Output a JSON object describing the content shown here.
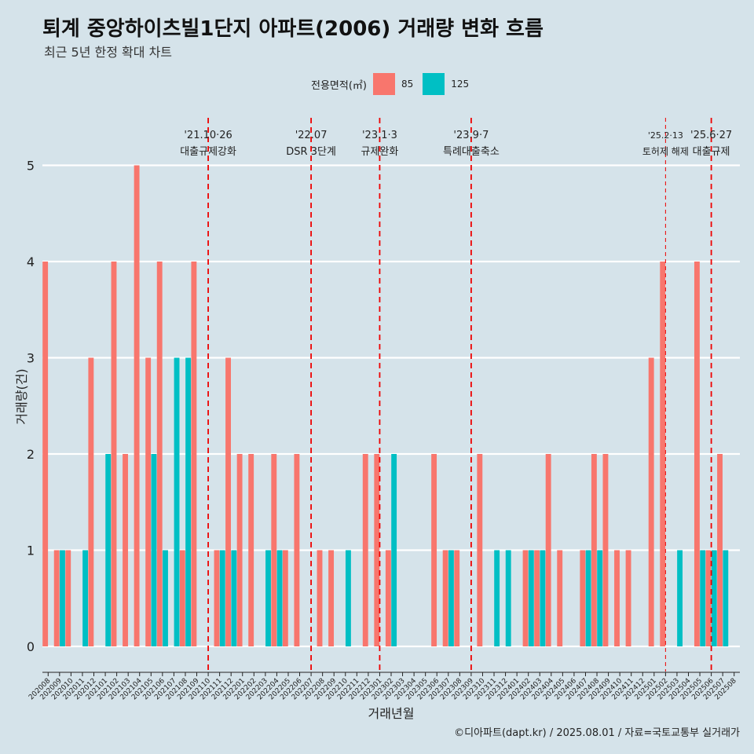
{
  "header": {
    "title": "퇴계 중앙하이츠빌1단지 아파트(2006) 거래량 변화 흐름",
    "subtitle": "최근 5년 한정 확대 차트"
  },
  "legend": {
    "title": "전용면적(㎡)",
    "items": [
      {
        "label": "85",
        "color": "#f8766d"
      },
      {
        "label": "125",
        "color": "#00bfc4"
      }
    ]
  },
  "caption": "©디아파트(dapt.kr) / 2025.08.01 / 자료=국토교통부 실거래가",
  "chart_data": {
    "type": "bar",
    "xlabel": "거래년월",
    "ylabel": "거래량(건)",
    "ylim": [
      0,
      5
    ],
    "yticks": [
      0,
      1,
      2,
      3,
      4,
      5
    ],
    "grid": true,
    "legend_position": "top",
    "categories": [
      "202008",
      "202009",
      "202010",
      "202011",
      "202012",
      "202101",
      "202102",
      "202103",
      "202104",
      "202105",
      "202106",
      "202107",
      "202108",
      "202109",
      "202110",
      "202111",
      "202112",
      "202201",
      "202202",
      "202203",
      "202204",
      "202205",
      "202206",
      "202207",
      "202208",
      "202209",
      "202210",
      "202211",
      "202212",
      "202301",
      "202302",
      "202303",
      "202304",
      "202305",
      "202306",
      "202307",
      "202308",
      "202309",
      "202310",
      "202311",
      "202312",
      "202401",
      "202402",
      "202403",
      "202404",
      "202405",
      "202406",
      "202407",
      "202408",
      "202409",
      "202410",
      "202411",
      "202412",
      "202501",
      "202502",
      "202503",
      "202504",
      "202505",
      "202506",
      "202507",
      "202508"
    ],
    "series": [
      {
        "name": "85",
        "color": "#f8766d",
        "values": [
          4,
          1,
          1,
          0,
          3,
          0,
          4,
          2,
          5,
          3,
          4,
          0,
          1,
          4,
          0,
          1,
          3,
          2,
          2,
          0,
          2,
          1,
          2,
          0,
          1,
          1,
          0,
          0,
          2,
          2,
          1,
          0,
          0,
          0,
          2,
          1,
          1,
          0,
          2,
          0,
          0,
          0,
          1,
          1,
          2,
          1,
          0,
          1,
          2,
          2,
          1,
          1,
          0,
          3,
          4,
          0,
          0,
          4,
          1,
          2,
          0
        ]
      },
      {
        "name": "125",
        "color": "#00bfc4",
        "values": [
          0,
          1,
          0,
          1,
          0,
          2,
          0,
          0,
          0,
          2,
          1,
          3,
          3,
          0,
          0,
          1,
          1,
          0,
          0,
          1,
          1,
          0,
          0,
          0,
          0,
          0,
          1,
          0,
          0,
          0,
          2,
          0,
          0,
          0,
          0,
          1,
          0,
          0,
          0,
          1,
          1,
          0,
          1,
          1,
          0,
          0,
          0,
          1,
          1,
          0,
          0,
          0,
          0,
          0,
          0,
          1,
          0,
          1,
          1,
          1,
          0
        ]
      }
    ],
    "events": [
      {
        "category": "202110",
        "date": "'21.10·26",
        "label": "대출규제강화",
        "style": "dashed"
      },
      {
        "category": "202207",
        "date": "'22.07",
        "label": "DSR 3단계",
        "style": "dashed"
      },
      {
        "category": "202301",
        "date": "'23.1·3",
        "label": "규제완화",
        "style": "dashed"
      },
      {
        "category": "202309",
        "date": "'23.9·7",
        "label": "특례대출축소",
        "style": "dashed"
      },
      {
        "category": "202502",
        "date": "'25.2·13",
        "label": "토허제 해제",
        "style": "thin-dashed"
      },
      {
        "category": "202506",
        "date": "'25.6·27",
        "label": "대출규제",
        "style": "dashed"
      }
    ]
  }
}
